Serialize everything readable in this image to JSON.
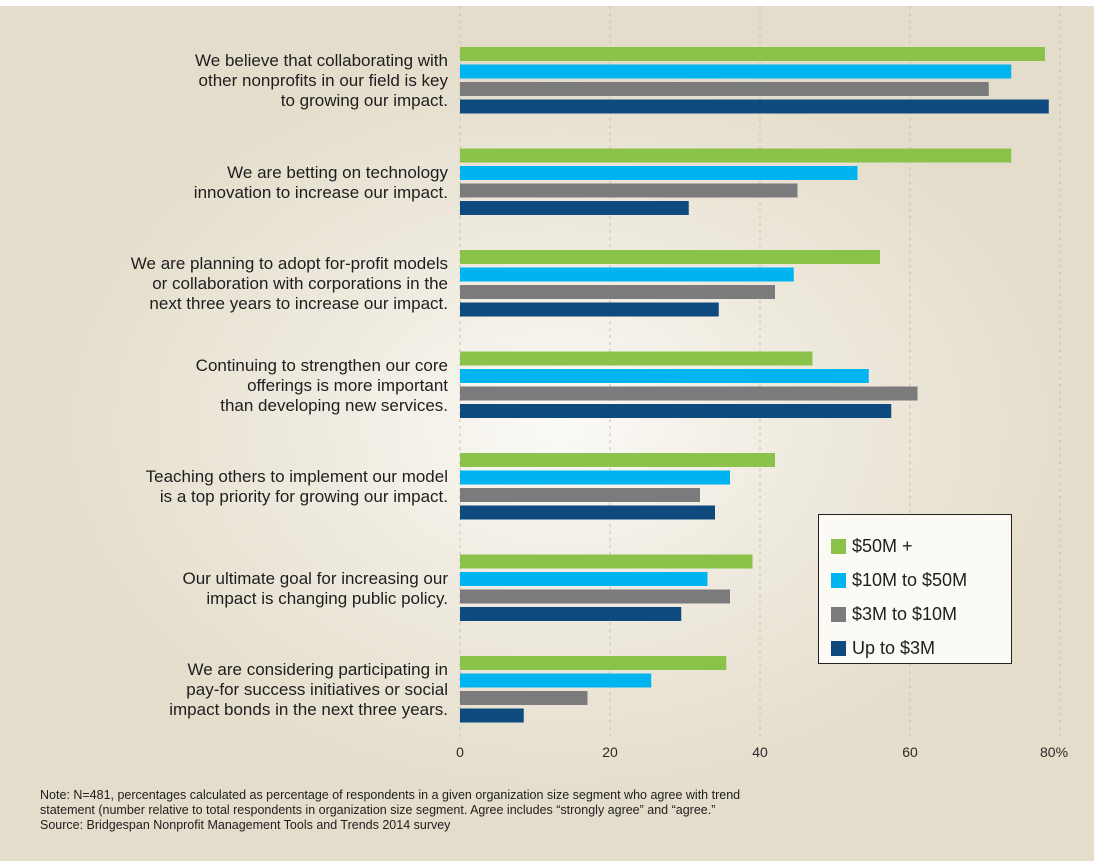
{
  "chart_data": {
    "type": "bar",
    "orientation": "horizontal",
    "categories": [
      "We believe that collaborating with\nother nonprofits in our field is key\nto growing our impact.",
      "We are betting on technology\ninnovation to increase our impact.",
      "We are planning to adopt for-profit models\nor collaboration with corporations in the\nnext three years to increase our impact.",
      "Continuing to strengthen our core\nofferings is more important\nthan developing new services.",
      "Teaching others to implement our model\nis a top priority for growing our impact.",
      "Our ultimate goal for increasing our\nimpact is changing public policy.",
      "We are considering participating in\npay-for success initiatives or social\nimpact bonds in the next three years."
    ],
    "series": [
      {
        "name": "$50M +",
        "color": "#8bc34a",
        "values": [
          78,
          73.5,
          56,
          47,
          42,
          39,
          35.5
        ]
      },
      {
        "name": "$10M to $50M",
        "color": "#00b5ef",
        "values": [
          73.5,
          53,
          44.5,
          54.5,
          36,
          33,
          25.5
        ]
      },
      {
        "name": "$3M to $10M",
        "color": "#7b7b7d",
        "values": [
          70.5,
          45,
          42,
          61,
          32,
          36,
          17
        ]
      },
      {
        "name": "Up to $3M",
        "color": "#0e4a7e",
        "values": [
          78.5,
          30.5,
          34.5,
          57.5,
          34,
          29.5,
          8.5
        ]
      }
    ],
    "xticks": [
      "0",
      "20",
      "40",
      "60",
      "80%"
    ],
    "xlim": [
      0,
      80
    ],
    "grid": true,
    "legend_position": "bottom-right",
    "title": "",
    "xlabel": "",
    "ylabel": ""
  },
  "note": {
    "line1": "Note: N=481, percentages calculated as percentage of respondents in a given organization size segment who agree with trend",
    "line2": "statement (number relative to total respondents in organization size segment. Agree includes “strongly agree” and “agree.”",
    "line3": "Source: Bridgespan Nonprofit Management Tools and Trends 2014 survey"
  }
}
